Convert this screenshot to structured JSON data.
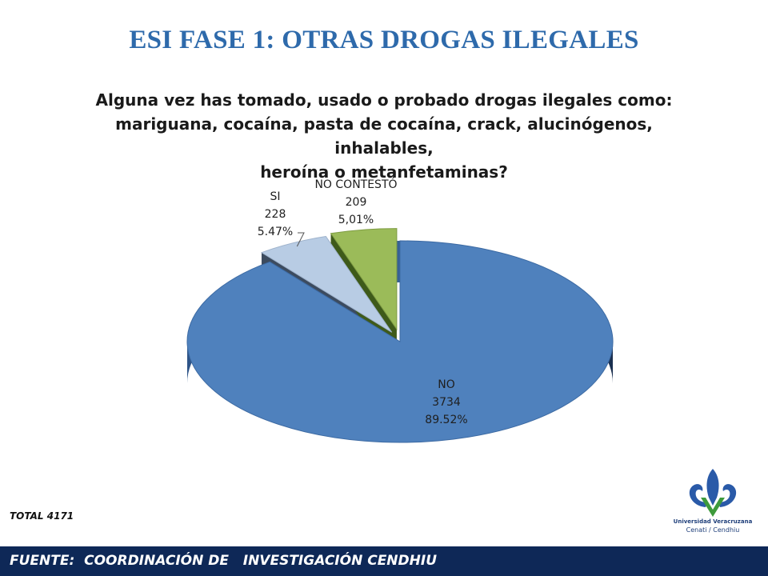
{
  "slide": {
    "title": "ESI FASE  1: OTRAS DROGAS ILEGALES",
    "question_lines": [
      "Alguna vez has tomado, usado o probado drogas ilegales como:",
      "mariguana, cocaína, pasta de cocaína, crack, alucinógenos, inhalables,",
      "heroína o metanfetaminas?"
    ],
    "total_text": "TOTAL 4171",
    "footer_text": "FUENTE:  COORDINACIÓN DE   INVESTIGACIÓN CENDHIU"
  },
  "logo": {
    "line1": "Universidad Veracruzana",
    "line2": "Cenati / Cendhiu",
    "colors": {
      "blue": "#2A5AA8",
      "green": "#3E9A3C"
    }
  },
  "chart_data": {
    "type": "pie",
    "style": "3d-exploded",
    "categories": [
      "NO",
      "SI",
      "NO CONTESTÓ"
    ],
    "values": [
      3734,
      228,
      209
    ],
    "percent_labels": [
      "89.52%",
      "5.47%",
      "5,01%"
    ],
    "colors": [
      "#4F81BD",
      "#B8CCE4",
      "#9BBB59"
    ],
    "total": 4171,
    "legend": "none"
  }
}
